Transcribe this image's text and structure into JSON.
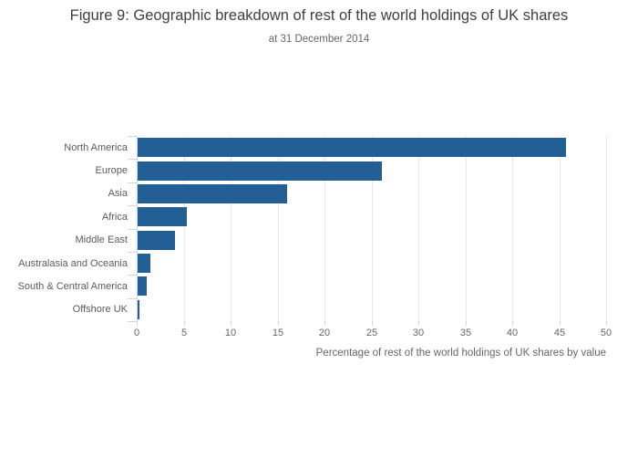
{
  "title": "Figure 9: Geographic breakdown of rest of the world holdings of UK shares",
  "subtitle": "at 31 December 2014",
  "colors": {
    "bar": "#235e94",
    "gridline": "#e6e6e6",
    "axis_tick": "#ccd6eb",
    "title_text": "#3f3f3f",
    "muted_text": "#666666"
  },
  "chart_data": {
    "type": "bar",
    "orientation": "horizontal",
    "title": "Figure 9: Geographic breakdown of rest of the world holdings of UK shares",
    "subtitle": "at 31 December 2014",
    "categories": [
      "North America",
      "Europe",
      "Asia",
      "Africa",
      "Middle East",
      "Australasia and Oceania",
      "South & Central America",
      "Offshore UK"
    ],
    "values": [
      45.6,
      26.0,
      15.9,
      5.2,
      4.0,
      1.4,
      1.0,
      0.2
    ],
    "xlabel": "Percentage of rest of the world holdings of UK shares by value",
    "ylabel": "",
    "xlim": [
      0,
      50
    ],
    "xticks": [
      0,
      5,
      10,
      15,
      20,
      25,
      30,
      35,
      40,
      45,
      50
    ],
    "grid": true,
    "legend": false
  }
}
